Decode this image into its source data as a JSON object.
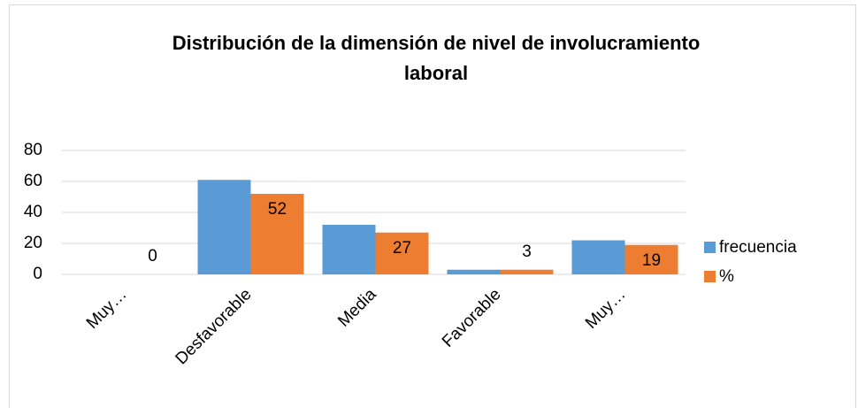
{
  "chart_data": {
    "type": "bar",
    "title": [
      "Distribución de la dimensión de nivel de involucramiento",
      "laboral"
    ],
    "categories": [
      "Muy…",
      "Desfavorable",
      "Media",
      "Favorable",
      "Muy…"
    ],
    "series": [
      {
        "name": "frecuencia",
        "color": "#5b9bd5",
        "values": [
          0,
          61,
          32,
          3,
          22
        ],
        "data_labels": false
      },
      {
        "name": "%",
        "color": "#ed7d31",
        "values": [
          0,
          52,
          27,
          3,
          19
        ],
        "data_labels": true
      }
    ],
    "ylim": [
      0,
      80
    ],
    "yticks": [
      0,
      20,
      40,
      60,
      80
    ],
    "grid": true,
    "legend": "right"
  }
}
